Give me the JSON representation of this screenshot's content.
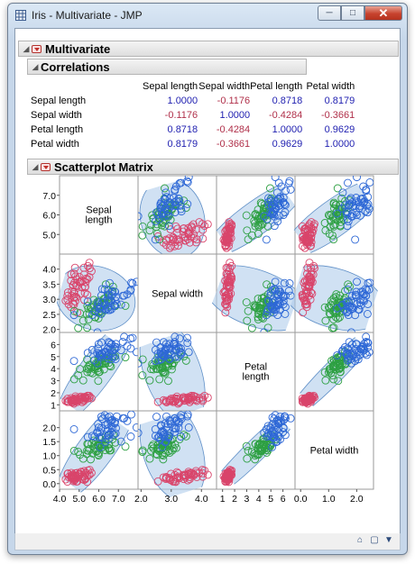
{
  "window": {
    "title": "Iris - Multivariate - JMP"
  },
  "report": {
    "title": "Multivariate"
  },
  "correlations": {
    "title": "Correlations",
    "columns": [
      "Sepal length",
      "Sepal width",
      "Petal length",
      "Petal width"
    ],
    "rows": [
      {
        "label": "Sepal length",
        "values": [
          "1.0000",
          "-0.1176",
          "0.8718",
          "0.8179"
        ]
      },
      {
        "label": "Sepal width",
        "values": [
          "-0.1176",
          "1.0000",
          "-0.4284",
          "-0.3661"
        ]
      },
      {
        "label": "Petal length",
        "values": [
          "0.8718",
          "-0.4284",
          "1.0000",
          "0.9629"
        ]
      },
      {
        "label": "Petal width",
        "values": [
          "0.8179",
          "-0.3661",
          "0.9629",
          "1.0000"
        ]
      }
    ]
  },
  "scatterplot": {
    "title": "Scatterplot Matrix",
    "variables": [
      {
        "name_lines": [
          "Sepal",
          "length"
        ],
        "range": [
          4.0,
          8.0
        ],
        "left_ticks": [
          "5.0",
          "6.0",
          "7.0"
        ],
        "left_tick_vals": [
          5,
          6,
          7
        ],
        "bottom_ticks": [
          "4.0",
          "5.0",
          "6.0",
          "7.0"
        ],
        "bottom_tick_vals": [
          4,
          5,
          6,
          7
        ]
      },
      {
        "name_lines": [
          "Sepal width"
        ],
        "range": [
          1.9,
          4.5
        ],
        "left_ticks": [
          "2.0",
          "2.5",
          "3.0",
          "3.5",
          "4.0"
        ],
        "left_tick_vals": [
          2.0,
          2.5,
          3.0,
          3.5,
          4.0
        ],
        "bottom_ticks": [
          "2.0",
          "3.0",
          "4.0"
        ],
        "bottom_tick_vals": [
          2,
          3,
          4
        ]
      },
      {
        "name_lines": [
          "Petal",
          "length"
        ],
        "range": [
          0.5,
          7.0
        ],
        "left_ticks": [
          "1",
          "2",
          "3",
          "4",
          "5",
          "6"
        ],
        "left_tick_vals": [
          1,
          2,
          3,
          4,
          5,
          6
        ],
        "bottom_ticks": [
          "1",
          "2",
          "3",
          "4",
          "5",
          "6"
        ],
        "bottom_tick_vals": [
          1,
          2,
          3,
          4,
          5,
          6
        ]
      },
      {
        "name_lines": [
          "Petal width"
        ],
        "range": [
          -0.2,
          2.6
        ],
        "left_ticks": [
          "0.0",
          "0.5",
          "1.0",
          "1.5",
          "2.0"
        ],
        "left_tick_vals": [
          0,
          0.5,
          1.0,
          1.5,
          2.0
        ],
        "bottom_ticks": [
          "0.0",
          "1.0",
          "2.0"
        ],
        "bottom_tick_vals": [
          0,
          1,
          2
        ]
      }
    ],
    "groups": [
      {
        "color": "#d9456b",
        "means": [
          5.01,
          3.43,
          1.46,
          0.25
        ],
        "sds": [
          0.35,
          0.38,
          0.17,
          0.11
        ]
      },
      {
        "color": "#2ea043",
        "means": [
          5.94,
          2.77,
          4.26,
          1.33
        ],
        "sds": [
          0.52,
          0.31,
          0.47,
          0.2
        ]
      },
      {
        "color": "#2e68d6",
        "means": [
          6.59,
          2.97,
          5.55,
          2.03
        ],
        "sds": [
          0.64,
          0.32,
          0.55,
          0.27
        ]
      }
    ],
    "ellipse_color": "#a9c9ea"
  },
  "colors": {
    "positive": "#1f1fb0",
    "negative": "#b0304a"
  },
  "icons": [
    "grid-app-icon",
    "minimize-icon",
    "maximize-icon",
    "close-icon",
    "home-icon",
    "page-icon",
    "dropdown-arrow-icon"
  ]
}
